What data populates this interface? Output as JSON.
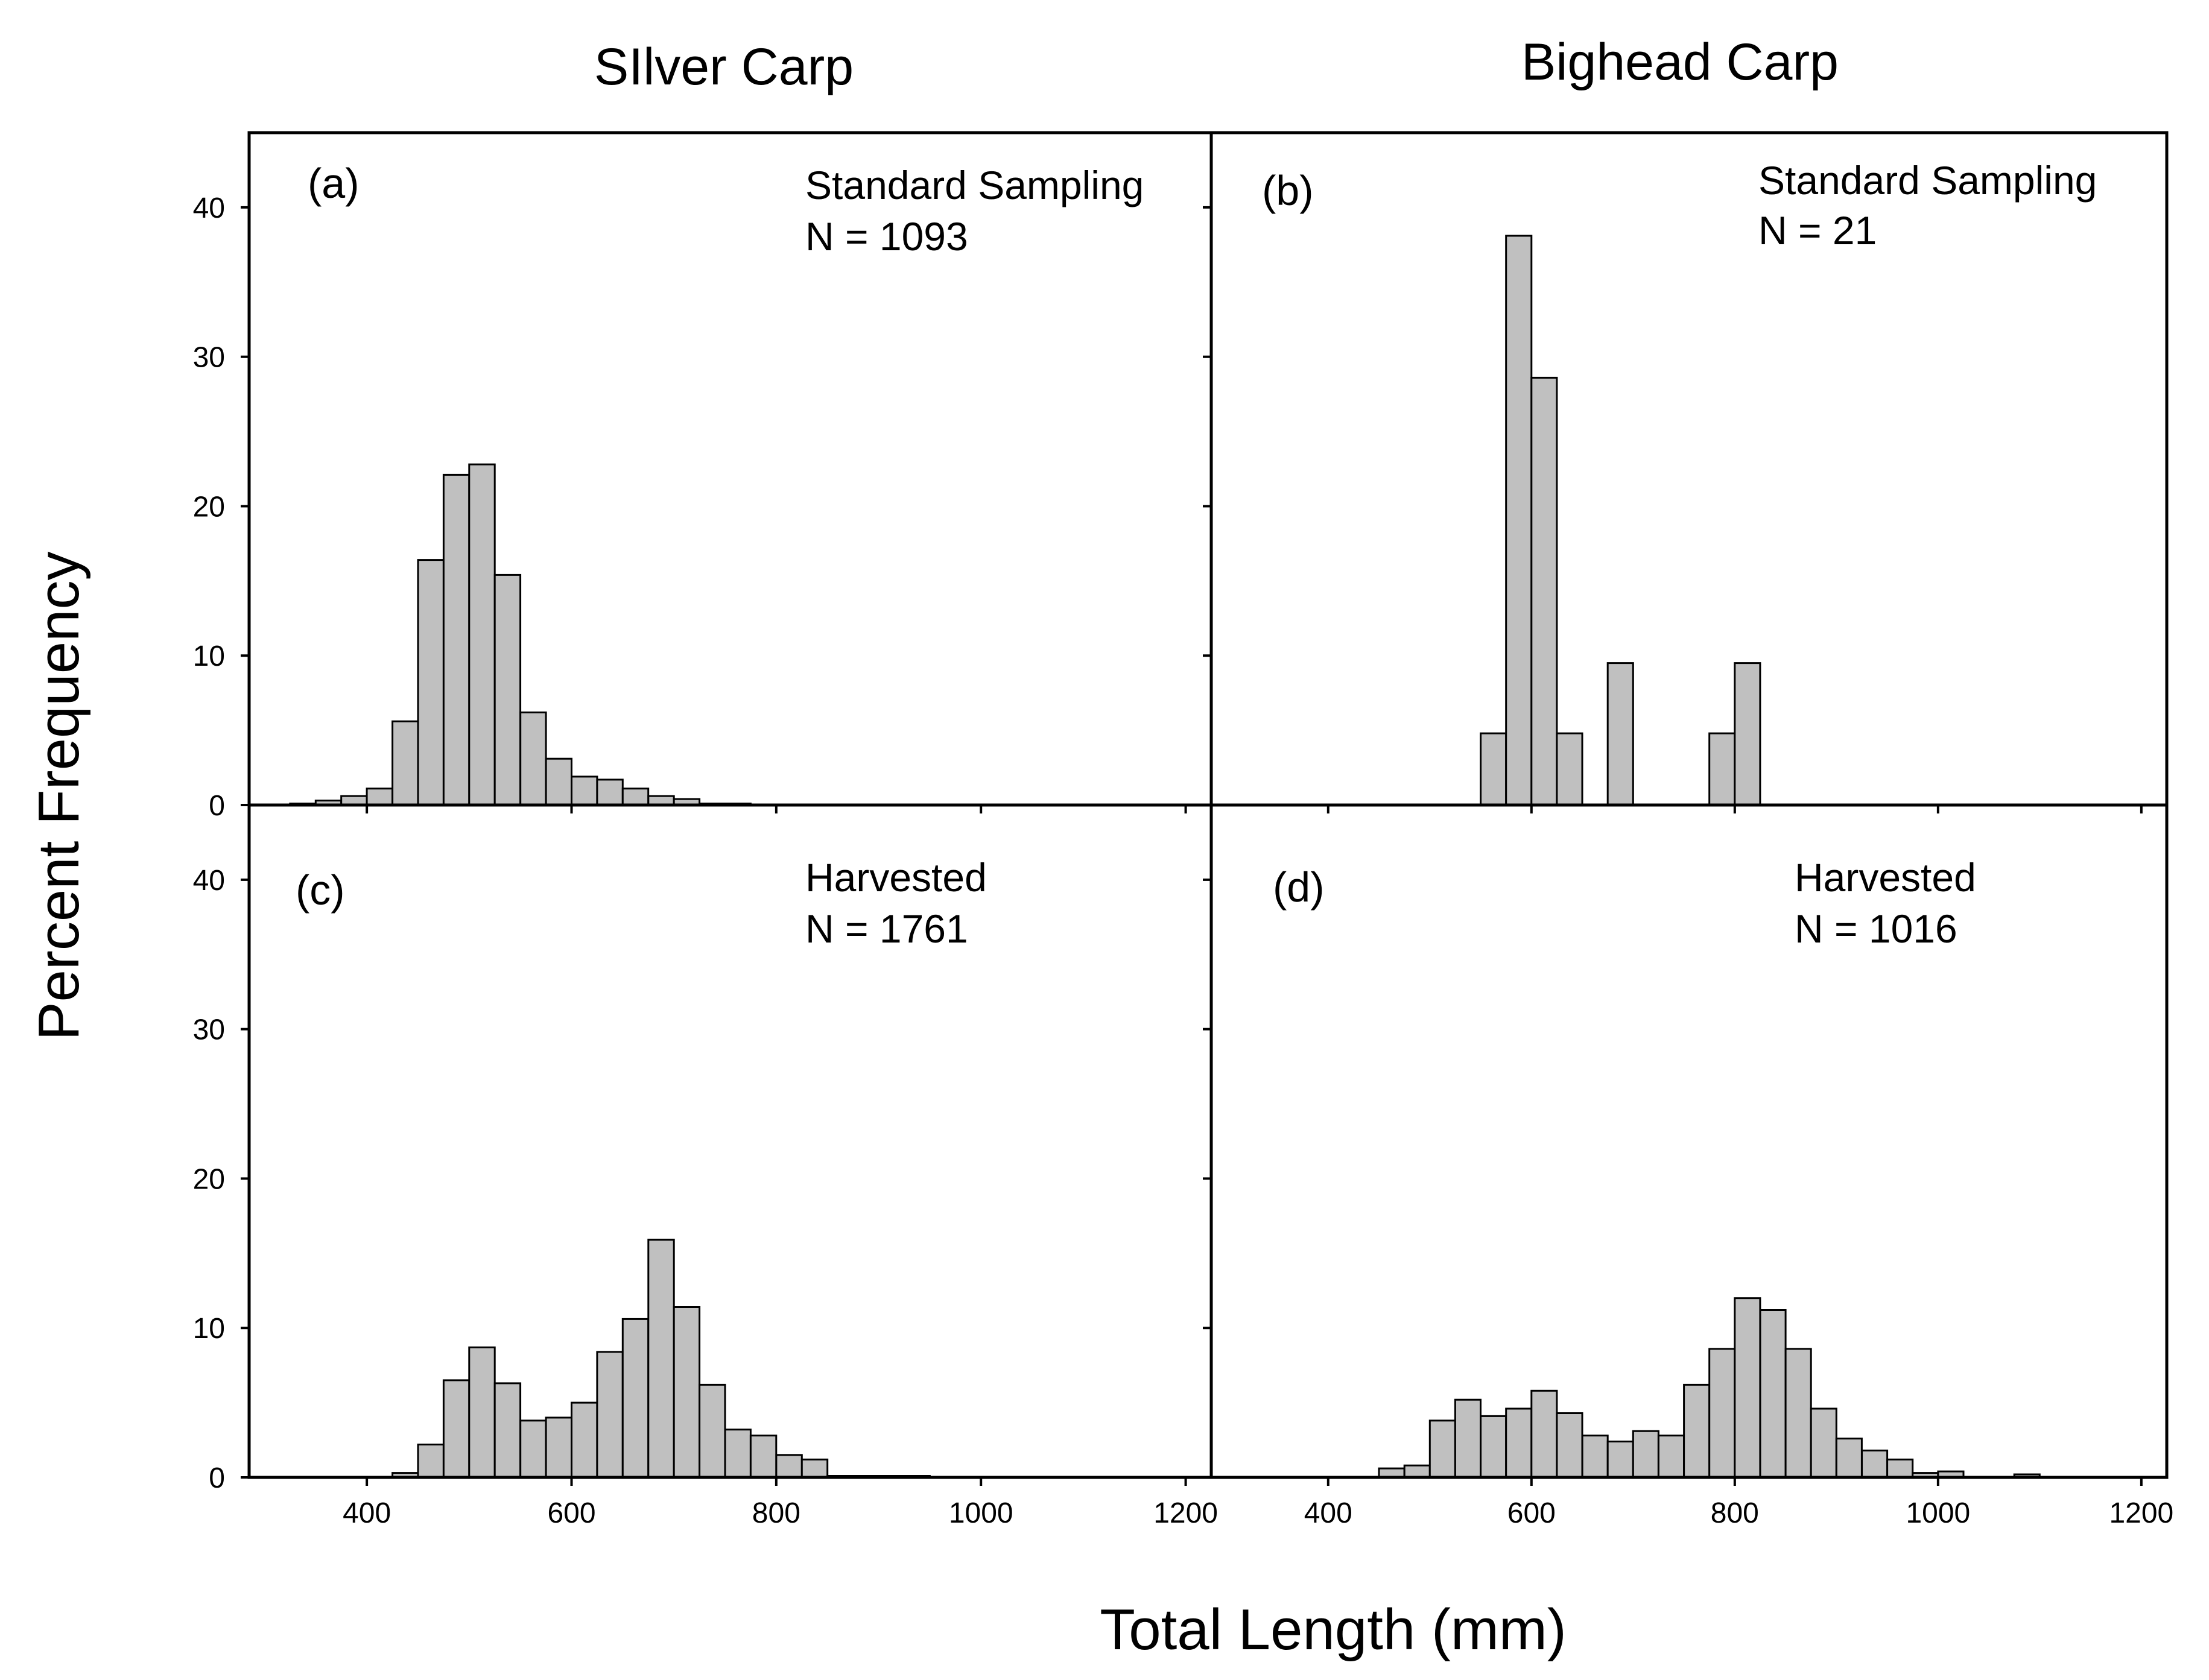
{
  "figure": {
    "column_titles": [
      "SIlver Carp",
      "Bighead Carp"
    ],
    "ylabel": "Percent Frequency",
    "xlabel": "Total Length (mm)",
    "colors": {
      "bar_fill": "#c0c0c0",
      "bar_stroke": "#000000",
      "axes": "#000000"
    }
  },
  "chart_data": [
    {
      "type": "bar",
      "panel": "(a)",
      "species": "SIlver Carp",
      "annotation": [
        "Standard Sampling",
        "N = 1093"
      ],
      "bin_width": 25,
      "bin_starts": [
        325,
        350,
        375,
        400,
        425,
        450,
        475,
        500,
        525,
        550,
        575,
        600,
        625,
        650,
        675,
        700,
        725,
        750
      ],
      "values": [
        0.1,
        0.3,
        0.6,
        1.1,
        5.6,
        16.4,
        22.1,
        22.8,
        15.4,
        6.2,
        3.1,
        1.9,
        1.7,
        1.1,
        0.6,
        0.4,
        0.1,
        0.1
      ],
      "xlim": [
        285,
        1225
      ],
      "ylim": [
        0,
        45
      ],
      "yticks": [
        0,
        10,
        20,
        30,
        40
      ],
      "xticks": [
        400,
        600,
        800,
        1000,
        1200
      ],
      "show_x_tick_labels": false
    },
    {
      "type": "bar",
      "panel": "(b)",
      "species": "Bighead Carp",
      "annotation": [
        "Standard Sampling",
        "N = 21"
      ],
      "bin_width": 25,
      "bin_starts": [
        550,
        575,
        600,
        625,
        675,
        775,
        800
      ],
      "values": [
        4.8,
        38.1,
        28.6,
        4.8,
        9.5,
        4.8,
        9.5
      ],
      "xlim": [
        285,
        1225
      ],
      "ylim": [
        0,
        45
      ],
      "yticks": [
        0,
        10,
        20,
        30,
        40
      ],
      "xticks": [
        400,
        600,
        800,
        1000,
        1200
      ],
      "show_x_tick_labels": false
    },
    {
      "type": "bar",
      "panel": "(c)",
      "species": "SIlver Carp",
      "annotation": [
        "Harvested",
        "N = 1761"
      ],
      "bin_width": 25,
      "bin_starts": [
        425,
        450,
        475,
        500,
        525,
        550,
        575,
        600,
        625,
        650,
        675,
        700,
        725,
        750,
        775,
        800,
        825,
        850,
        875,
        900,
        925
      ],
      "values": [
        0.3,
        2.2,
        6.5,
        8.7,
        6.3,
        3.8,
        4.0,
        5.0,
        8.4,
        10.6,
        15.9,
        11.4,
        6.2,
        3.2,
        2.8,
        1.5,
        1.2,
        0.1,
        0.1,
        0.1,
        0.1
      ],
      "xlim": [
        285,
        1225
      ],
      "ylim": [
        0,
        45
      ],
      "yticks": [
        0,
        10,
        20,
        30,
        40
      ],
      "xticks": [
        400,
        600,
        800,
        1000,
        1200
      ],
      "xtick_labels": [
        "400",
        "600",
        "800",
        "1000",
        "1200"
      ],
      "show_x_tick_labels": true
    },
    {
      "type": "bar",
      "panel": "(d)",
      "species": "Bighead Carp",
      "annotation": [
        "Harvested",
        "N = 1016"
      ],
      "bin_width": 25,
      "bin_starts": [
        450,
        475,
        500,
        525,
        550,
        575,
        600,
        625,
        650,
        675,
        700,
        725,
        750,
        775,
        800,
        825,
        850,
        875,
        900,
        925,
        950,
        975,
        1000,
        1075
      ],
      "values": [
        0.6,
        0.8,
        3.8,
        5.2,
        4.1,
        4.6,
        5.8,
        4.3,
        2.8,
        2.4,
        3.1,
        2.8,
        6.2,
        8.6,
        12.0,
        11.2,
        8.6,
        4.6,
        2.6,
        1.8,
        1.2,
        0.3,
        0.4,
        0.2
      ],
      "xlim": [
        285,
        1225
      ],
      "ylim": [
        0,
        45
      ],
      "yticks": [
        0,
        10,
        20,
        30,
        40
      ],
      "xticks": [
        400,
        600,
        800,
        1000,
        1200
      ],
      "xtick_labels": [
        "400",
        "600",
        "800",
        "1000",
        "1200"
      ],
      "show_x_tick_labels": true
    }
  ]
}
